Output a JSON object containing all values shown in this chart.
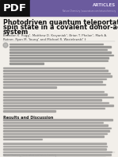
{
  "bg_color": "#f2efea",
  "header_bar_color": "#6b5b9e",
  "pdf_box_color": "#111111",
  "pdf_text": "PDF",
  "pdf_text_color": "#ffffff",
  "journal_label": "ARTICLES",
  "journal_sublabel": "Nature Chemistry | www.nature.com/naturechemistry",
  "title_line1": "Photodriven quantum teleportation of an electron",
  "title_line2": "spin state in a covalent donor-acceptor-radical",
  "title_line3": "system",
  "title_color": "#111111",
  "title_fontsize": 5.8,
  "authors": "Brandon K. Rugg¹, Matthew D. Krzyaniak¹, Brian T. Phelan¹, Mark A. Ratner, Ryan M. Young¹ and Michael R. Wasielewski¹ †",
  "authors_fontsize": 2.8,
  "body_text_color": "#555555",
  "section_heading": "Results and Discussion",
  "footer_text": "Nature Chemistry | www.nature.com/naturechemistry"
}
